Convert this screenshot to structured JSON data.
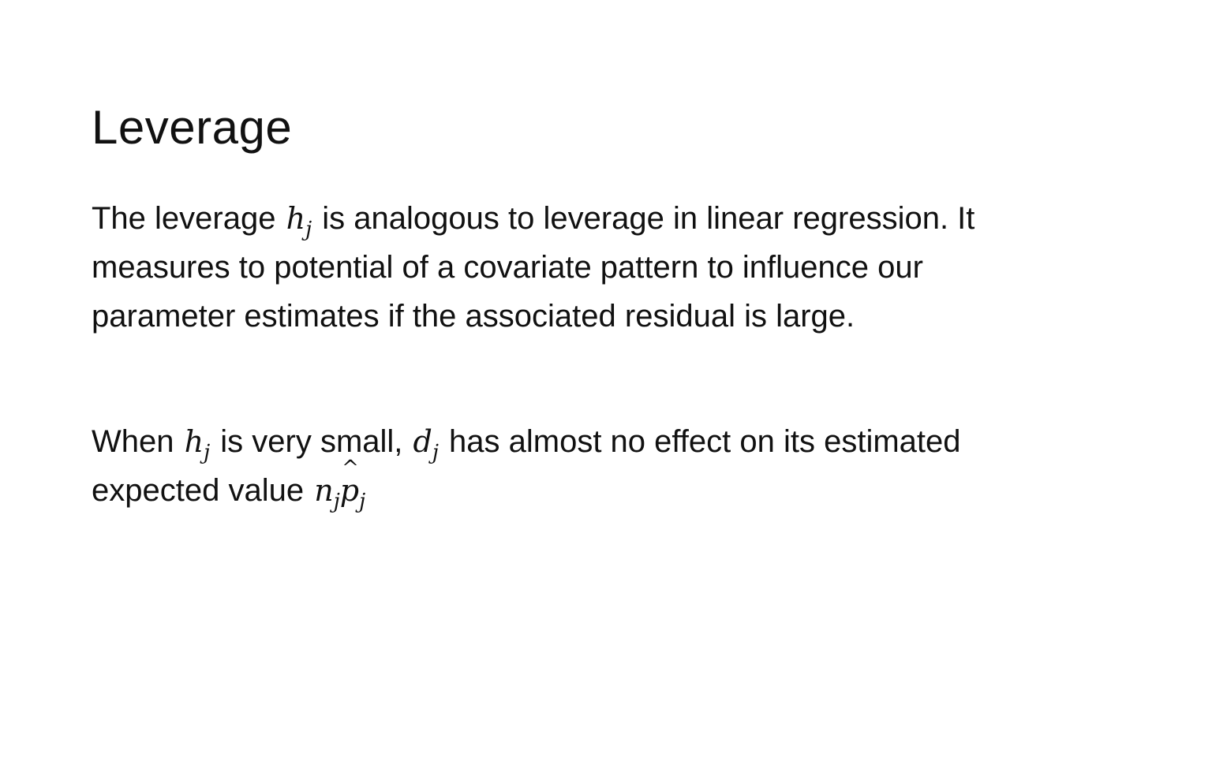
{
  "slide": {
    "title": "Leverage",
    "paragraph1": {
      "line1_pre": "The leverage ",
      "line1_math_base": "h",
      "line1_math_sub": "j",
      "line1_post": " is analogous to leverage in linear regression. It",
      "line2": "measures to potential of a covariate pattern to influence our",
      "line3": "parameter estimates if the associated residual is large."
    },
    "paragraph2": {
      "line1_pre": "When ",
      "math1_base": "h",
      "math1_sub": "j",
      "line1_mid": " is very small, ",
      "math2_base": "d",
      "math2_sub": "j",
      "line1_post": " has almost no effect on its estimated",
      "line2_pre": "expected value ",
      "math3_base": "n",
      "math3_sub": "j",
      "math4_base": "p",
      "math4_hat": "^",
      "math4_sub": "j"
    }
  }
}
